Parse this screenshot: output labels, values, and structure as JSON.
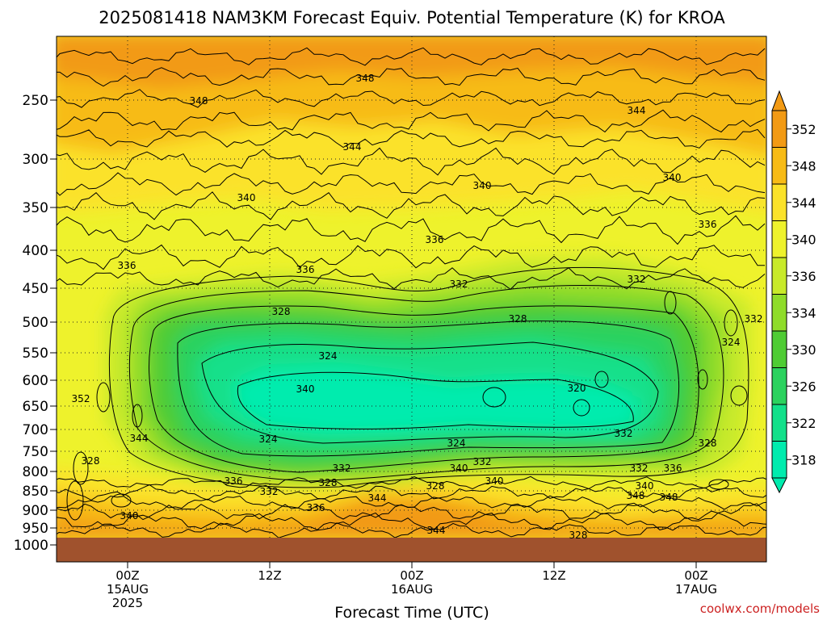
{
  "chart_data": {
    "type": "heatmap",
    "title": "2025081418 NAM3KM Forecast Equiv. Potential Temperature (K) for KROA",
    "xlabel": "Forecast Time (UTC)",
    "ylabel": "",
    "y_ticks": [
      "250",
      "300",
      "350",
      "400",
      "450",
      "500",
      "550",
      "600",
      "650",
      "700",
      "750",
      "800",
      "850",
      "900",
      "950",
      "1000"
    ],
    "x_ticks": [
      {
        "lines": [
          "00Z",
          "15AUG",
          "2025"
        ]
      },
      {
        "lines": [
          "12Z"
        ]
      },
      {
        "lines": [
          "00Z",
          "16AUG"
        ]
      },
      {
        "lines": [
          "12Z"
        ]
      },
      {
        "lines": [
          "00Z",
          "17AUG"
        ]
      }
    ],
    "colorbar": {
      "levels": [
        "352",
        "348",
        "344",
        "340",
        "336",
        "334",
        "330",
        "326",
        "322",
        "318"
      ],
      "colors": {
        "352": "#f29a14",
        "348": "#f7bb16",
        "344": "#fbe22a",
        "340": "#eef22c",
        "336": "#c8ea2a",
        "334": "#8fdc2a",
        "330": "#4fcc34",
        "326": "#2bd25e",
        "322": "#13e08a",
        "318": "#00ecae"
      }
    },
    "contour_labels": [
      "348",
      "348",
      "344",
      "344",
      "340",
      "340",
      "340",
      "336",
      "336",
      "336",
      "332",
      "332",
      "332",
      "328",
      "328",
      "324",
      "324",
      "320",
      "340",
      "336",
      "344",
      "328",
      "324",
      "324",
      "332",
      "328",
      "332",
      "332",
      "328",
      "332",
      "336",
      "340",
      "336",
      "332",
      "328",
      "340",
      "340",
      "336",
      "340",
      "348",
      "344",
      "348",
      "352",
      "344",
      "328",
      "340"
    ],
    "ground_color": "#a0522d"
  },
  "credit": "coolwx.com/models"
}
